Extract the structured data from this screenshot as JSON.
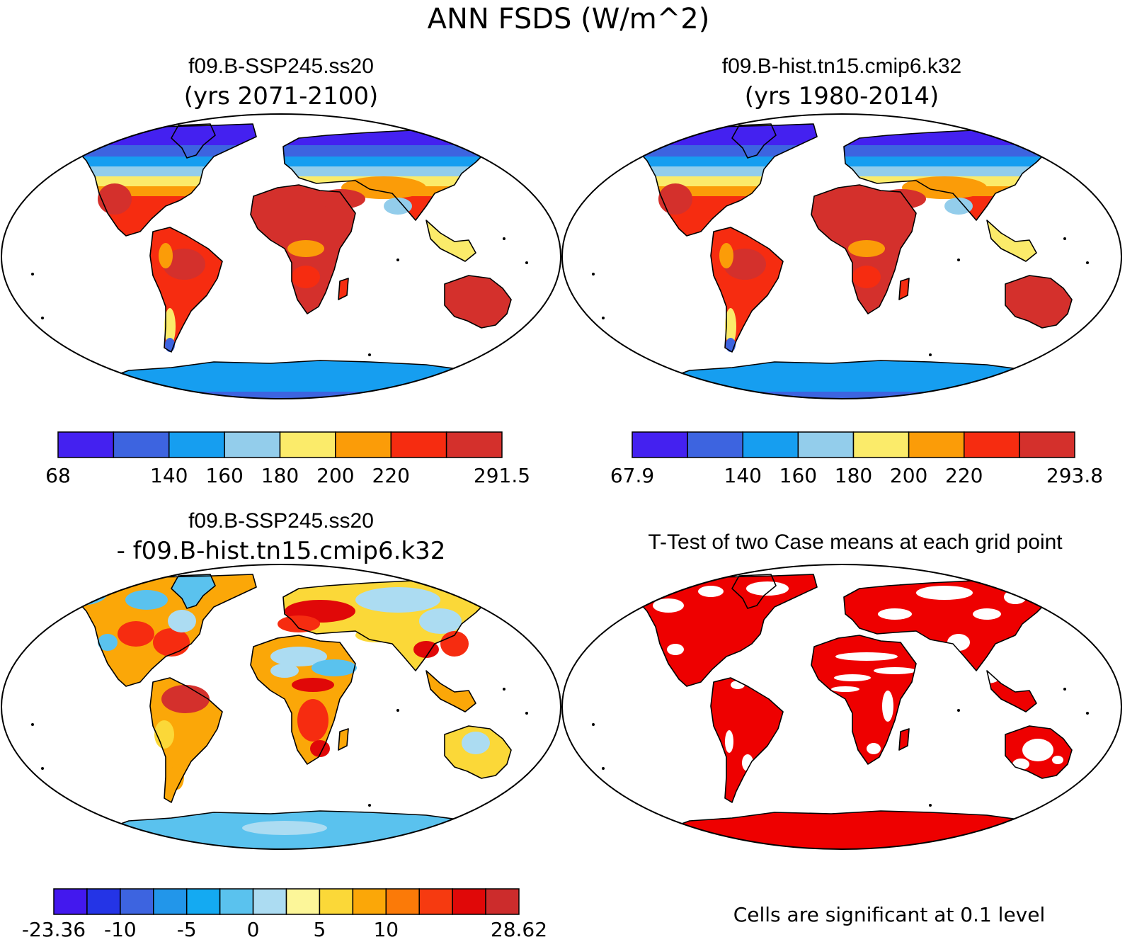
{
  "figure": {
    "title": "ANN FSDS (W/m^2)"
  },
  "panels": [
    {
      "id": "ssp245",
      "title": "f09.B-SSP245.ss20",
      "subtitle": "(yrs 2071-2100)",
      "map_style": "climatology",
      "colorbar": {
        "colors": [
          "#4421f0",
          "#3d64e0",
          "#169ef0",
          "#93cdeb",
          "#fbeb6a",
          "#fb9c08",
          "#f62c10",
          "#d4302c"
        ],
        "labels": [
          "68",
          "",
          "140",
          "160",
          "180",
          "200",
          "220",
          "",
          "291.5"
        ]
      }
    },
    {
      "id": "hist",
      "title": "f09.B-hist.tn15.cmip6.k32",
      "subtitle": "(yrs 1980-2014)",
      "map_style": "climatology",
      "colorbar": {
        "colors": [
          "#4421f0",
          "#3d64e0",
          "#169ef0",
          "#93cdeb",
          "#fbeb6a",
          "#fb9c08",
          "#f62c10",
          "#d4302c"
        ],
        "labels": [
          "67.9",
          "",
          "140",
          "160",
          "180",
          "200",
          "220",
          "",
          "293.8"
        ]
      }
    },
    {
      "id": "diff",
      "title": "f09.B-SSP245.ss20",
      "subtitle": "- f09.B-hist.tn15.cmip6.k32",
      "map_style": "difference",
      "colorbar": {
        "colors": [
          "#4318ee",
          "#2434e6",
          "#3d64e0",
          "#2296ea",
          "#14aaf2",
          "#5ac2ee",
          "#acdcf2",
          "#fcf699",
          "#fbd838",
          "#fba708",
          "#fb7a08",
          "#f63a10",
          "#e00808",
          "#cc2c2c"
        ],
        "labels": [
          "-23.36",
          "",
          "-10",
          "",
          "-5",
          "",
          "0",
          "",
          "5",
          "",
          "10",
          "",
          "",
          "",
          "28.62"
        ]
      }
    },
    {
      "id": "ttest",
      "title": "T-Test of two Case means at each grid point",
      "map_style": "significance",
      "footnote": "Cells are significant at 0.1 level"
    }
  ]
}
